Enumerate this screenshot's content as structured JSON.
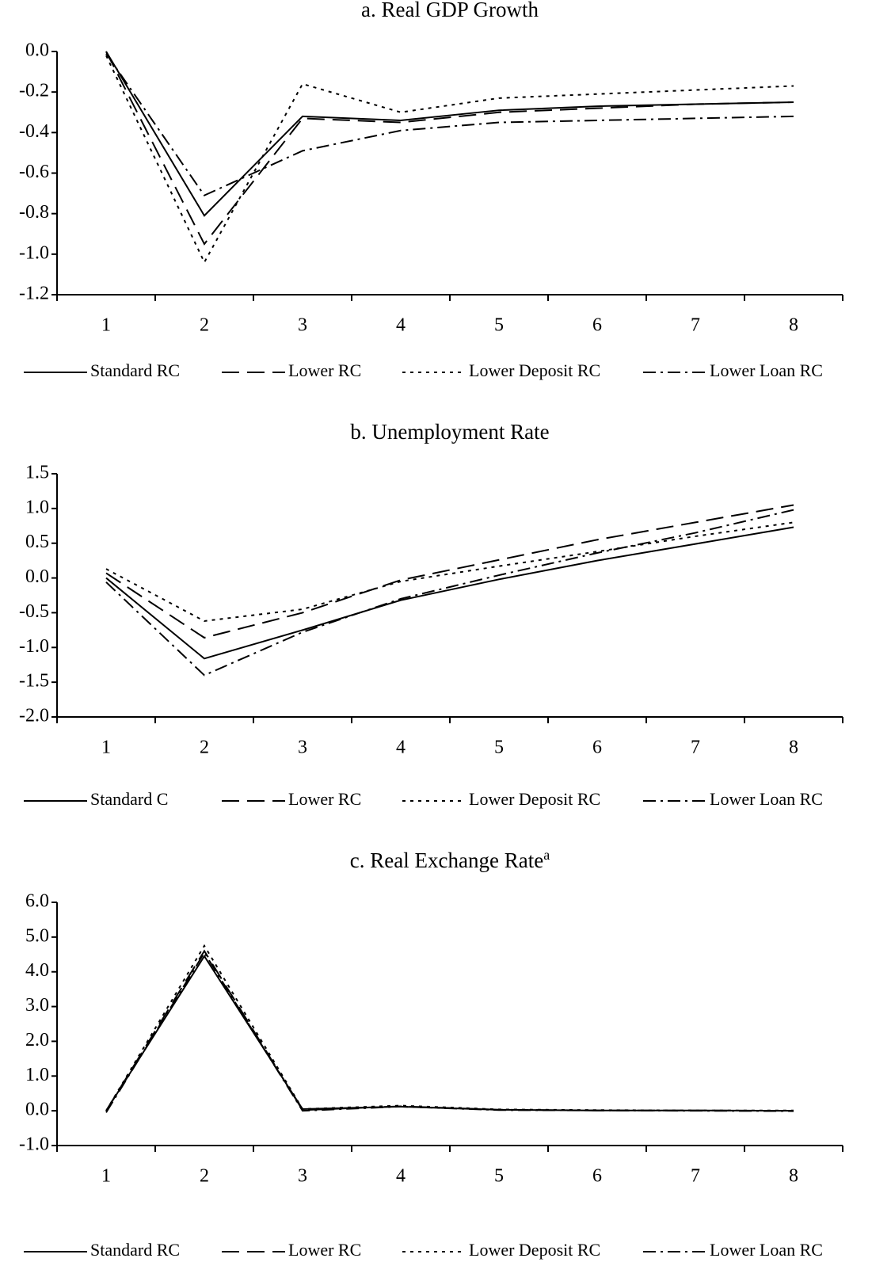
{
  "chart_data": [
    {
      "type": "line",
      "title": "a. Real GDP Growth",
      "categories": [
        "1",
        "2",
        "3",
        "4",
        "5",
        "6",
        "7",
        "8"
      ],
      "ylim": [
        -1.2,
        0
      ],
      "yticks": [
        {
          "value": 0,
          "label": "0.0"
        },
        {
          "value": -0.2,
          "label": "-0.2"
        },
        {
          "value": -0.4,
          "label": "-0.4"
        },
        {
          "value": -0.6,
          "label": "-0.6"
        },
        {
          "value": -0.8,
          "label": "-0.8"
        },
        {
          "value": -1,
          "label": "-1.0"
        },
        {
          "value": -1.2,
          "label": "-1.2"
        }
      ],
      "series": [
        {
          "name": "Standard RC",
          "color": "#000000",
          "style": "solid",
          "values": [
            0,
            -0.81,
            -0.32,
            -0.34,
            -0.29,
            -0.27,
            -0.26,
            -0.25
          ]
        },
        {
          "name": "Lower RC",
          "color": "#000000",
          "style": "dashed",
          "values": [
            0,
            -0.95,
            -0.33,
            -0.35,
            -0.3,
            -0.28,
            -0.26,
            -0.25
          ]
        },
        {
          "name": "Lower Deposit RC",
          "color": "#000000",
          "style": "dotted",
          "values": [
            -0.02,
            -1.04,
            -0.16,
            -0.3,
            -0.23,
            -0.21,
            -0.19,
            -0.17
          ]
        },
        {
          "name": "Lower Loan RC",
          "color": "#000000",
          "style": "dashdot",
          "values": [
            -0.01,
            -0.71,
            -0.49,
            -0.39,
            -0.35,
            -0.34,
            -0.33,
            -0.32
          ]
        }
      ]
    },
    {
      "type": "line",
      "title": "b. Unemployment Rate",
      "categories": [
        "1",
        "2",
        "3",
        "4",
        "5",
        "6",
        "7",
        "8"
      ],
      "ylim": [
        -2,
        1.5
      ],
      "yticks": [
        {
          "value": 1.5,
          "label": "1.5"
        },
        {
          "value": 1,
          "label": "1.0"
        },
        {
          "value": 0.5,
          "label": "0.5"
        },
        {
          "value": 0,
          "label": "0.0"
        },
        {
          "value": -0.5,
          "label": "-0.5"
        },
        {
          "value": -1,
          "label": "-1.0"
        },
        {
          "value": -1.5,
          "label": "-1.5"
        },
        {
          "value": -2,
          "label": "-2.0"
        }
      ],
      "series": [
        {
          "name": "Standard C",
          "color": "#000000",
          "style": "solid",
          "values": [
            0,
            -1.16,
            -0.75,
            -0.32,
            -0.02,
            0.25,
            0.49,
            0.73
          ]
        },
        {
          "name": "Lower RC",
          "color": "#000000",
          "style": "dashed",
          "values": [
            0.07,
            -0.86,
            -0.5,
            -0.03,
            0.26,
            0.55,
            0.8,
            1.05
          ]
        },
        {
          "name": "Lower Deposit RC",
          "color": "#000000",
          "style": "dotted",
          "values": [
            0.13,
            -0.62,
            -0.45,
            -0.05,
            0.17,
            0.38,
            0.6,
            0.8
          ]
        },
        {
          "name": "Lower Loan RC",
          "color": "#000000",
          "style": "dashdot",
          "values": [
            -0.06,
            -1.4,
            -0.78,
            -0.3,
            0.04,
            0.36,
            0.65,
            0.98
          ]
        }
      ]
    },
    {
      "type": "line",
      "title": "c. Real Exchange Rate",
      "title_superscript": "a",
      "categories": [
        "1",
        "2",
        "3",
        "4",
        "5",
        "6",
        "7",
        "8"
      ],
      "ylim": [
        -1,
        6
      ],
      "yticks": [
        {
          "value": 6,
          "label": "6.0"
        },
        {
          "value": 5,
          "label": "5.0"
        },
        {
          "value": 4,
          "label": "4.0"
        },
        {
          "value": 3,
          "label": "3.0"
        },
        {
          "value": 2,
          "label": "2.0"
        },
        {
          "value": 1,
          "label": "1.0"
        },
        {
          "value": 0,
          "label": "0.0"
        },
        {
          "value": -1,
          "label": "-1.0"
        }
      ],
      "series": [
        {
          "name": "Standard RC",
          "color": "#000000",
          "style": "solid",
          "values": [
            0,
            4.45,
            0.05,
            0.12,
            0.03,
            0.01,
            0.01,
            0
          ]
        },
        {
          "name": "Lower RC",
          "color": "#000000",
          "style": "dashed",
          "values": [
            0,
            4.6,
            0.02,
            0.13,
            0.03,
            0.01,
            0.01,
            0
          ]
        },
        {
          "name": "Lower Deposit RC",
          "color": "#000000",
          "style": "dotted",
          "values": [
            0,
            4.75,
            0.05,
            0.15,
            0.04,
            0.02,
            0.01,
            0.01
          ]
        },
        {
          "name": "Lower Loan RC",
          "color": "#000000",
          "style": "dashdot",
          "values": [
            -0.05,
            4.55,
            0,
            0.12,
            0.02,
            0.01,
            0,
            -0.01
          ]
        }
      ]
    }
  ]
}
